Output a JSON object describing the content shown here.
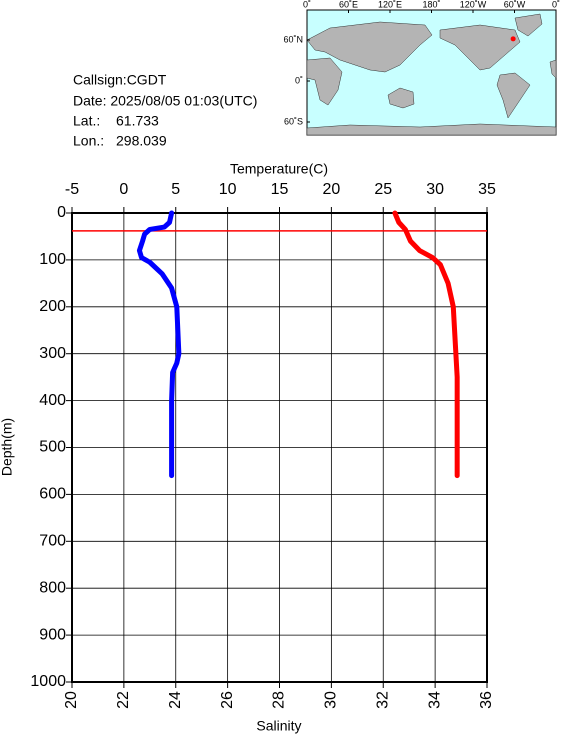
{
  "chart_data": {
    "type": "profile",
    "info": {
      "callsign": "Callsign:CGDT",
      "date": "Date:  2025/08/05 01:03(UTC)",
      "lat_label": "Lat.:",
      "lat": 61.733,
      "lon_label": "Lon.:",
      "lon": 298.039
    },
    "map": {
      "lonticks": [
        {
          "value": 0,
          "label": "0˚"
        },
        {
          "value": 60,
          "label": "60˚E"
        },
        {
          "value": 120,
          "label": "120˚E"
        },
        {
          "value": 180,
          "label": "180˚"
        },
        {
          "value": 240,
          "label": "120˚W"
        },
        {
          "value": 300,
          "label": "60˚W"
        },
        {
          "value": 360,
          "label": "0˚"
        }
      ],
      "latticks": [
        {
          "value": 60,
          "label": "60˚N"
        },
        {
          "value": 0,
          "label": "0˚"
        },
        {
          "value": -60,
          "label": "60˚S"
        }
      ],
      "marker_color": "#ff0000"
    },
    "xlabel": "Temperature(C)",
    "xlim": [
      -5,
      35
    ],
    "xticks": [
      -5,
      0,
      5,
      10,
      15,
      20,
      25,
      30,
      35
    ],
    "x2label": "Salinity",
    "x2lim": [
      20,
      36
    ],
    "x2ticks": [
      20,
      22,
      24,
      26,
      28,
      30,
      32,
      34,
      36
    ],
    "ylabel": "Depth(m)",
    "ylim": [
      0,
      1000
    ],
    "y_inverted": true,
    "yticks": [
      0,
      100,
      200,
      300,
      400,
      500,
      600,
      700,
      800,
      900,
      1000
    ],
    "grid": true,
    "reference_lines": [
      {
        "depth": 38,
        "color": "#ff0000"
      }
    ],
    "series": [
      {
        "color": "#0000ff",
        "axis": "x",
        "depth": [
          0,
          20,
          30,
          35,
          45,
          60,
          80,
          95,
          105,
          130,
          160,
          200,
          250,
          300,
          320,
          340,
          400,
          560
        ],
        "values": [
          4.6,
          4.4,
          3.9,
          2.5,
          2.0,
          1.8,
          1.5,
          1.7,
          2.5,
          3.7,
          4.6,
          5.1,
          5.2,
          5.3,
          5.1,
          4.7,
          4.6,
          4.6
        ]
      },
      {
        "color": "#ff0000",
        "axis": "x2",
        "depth": [
          0,
          20,
          35,
          60,
          80,
          95,
          110,
          150,
          200,
          250,
          350,
          560
        ],
        "values": [
          32.45,
          32.6,
          32.85,
          33.05,
          33.4,
          33.9,
          34.2,
          34.5,
          34.7,
          34.75,
          34.85,
          34.85
        ]
      }
    ]
  }
}
